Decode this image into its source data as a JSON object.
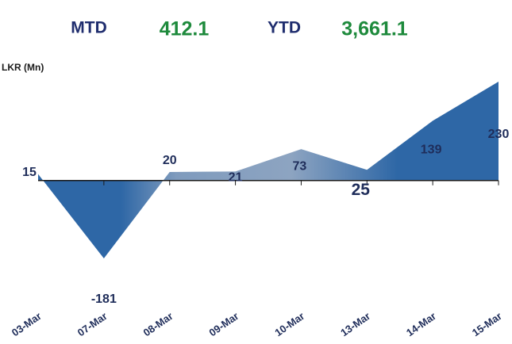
{
  "header": {
    "mtd_label": "MTD",
    "mtd_value": "412.1",
    "ytd_label": "YTD",
    "ytd_value": "3,661.1"
  },
  "chart_data": {
    "type": "area",
    "y_label": "LKR (Mn)",
    "categories": [
      "03-Mar",
      "07-Mar",
      "08-Mar",
      "09-Mar",
      "10-Mar",
      "13-Mar",
      "14-Mar",
      "15-Mar"
    ],
    "values": [
      15,
      -181,
      20,
      21,
      73,
      25,
      139,
      230
    ],
    "color": "#2e67a6"
  }
}
